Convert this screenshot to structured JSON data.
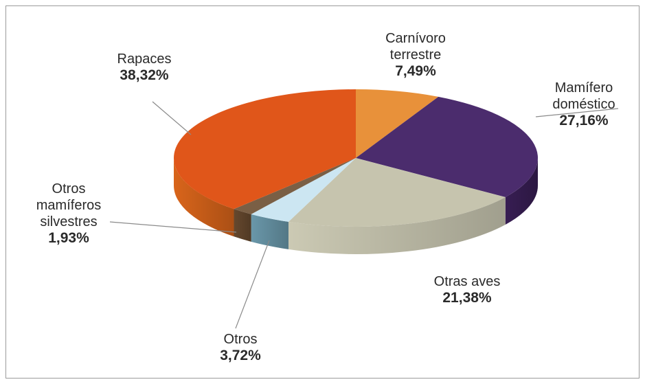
{
  "chart_data": {
    "type": "pie",
    "style": "3d",
    "slices": [
      {
        "name_lines": [
          "Carnívoro",
          "terrestre"
        ],
        "value_text": "7,49%",
        "value": 7.49,
        "top_color": "#e8913a",
        "side_color": "#c96a20"
      },
      {
        "name_lines": [
          "Mamífero",
          "doméstico"
        ],
        "value_text": "27,16%",
        "value": 27.16,
        "top_color": "#4b2c6d",
        "side_color": "#3a1f57"
      },
      {
        "name_lines": [
          "Otras aves"
        ],
        "value_text": "21,38%",
        "value": 21.38,
        "top_color": "#c6c4ae",
        "side_color": "#d6d4bd"
      },
      {
        "name_lines": [
          "Otros"
        ],
        "value_text": "3,72%",
        "value": 3.72,
        "top_color": "#cce6f2",
        "side_color": "#6f9fb2"
      },
      {
        "name_lines": [
          "Otros",
          "mamíferos",
          "silvestres"
        ],
        "value_text": "1,93%",
        "value": 1.93,
        "top_color": "#7a5f45",
        "side_color": "#6b4c30"
      },
      {
        "name_lines": [
          "Rapaces"
        ],
        "value_text": "38,32%",
        "value": 38.32,
        "top_color": "#e0561a",
        "side_color": "#e46a1c"
      }
    ],
    "start_angle_deg": 270,
    "direction": "clockwise",
    "title": "",
    "legend": "none (labels with leader lines)"
  }
}
